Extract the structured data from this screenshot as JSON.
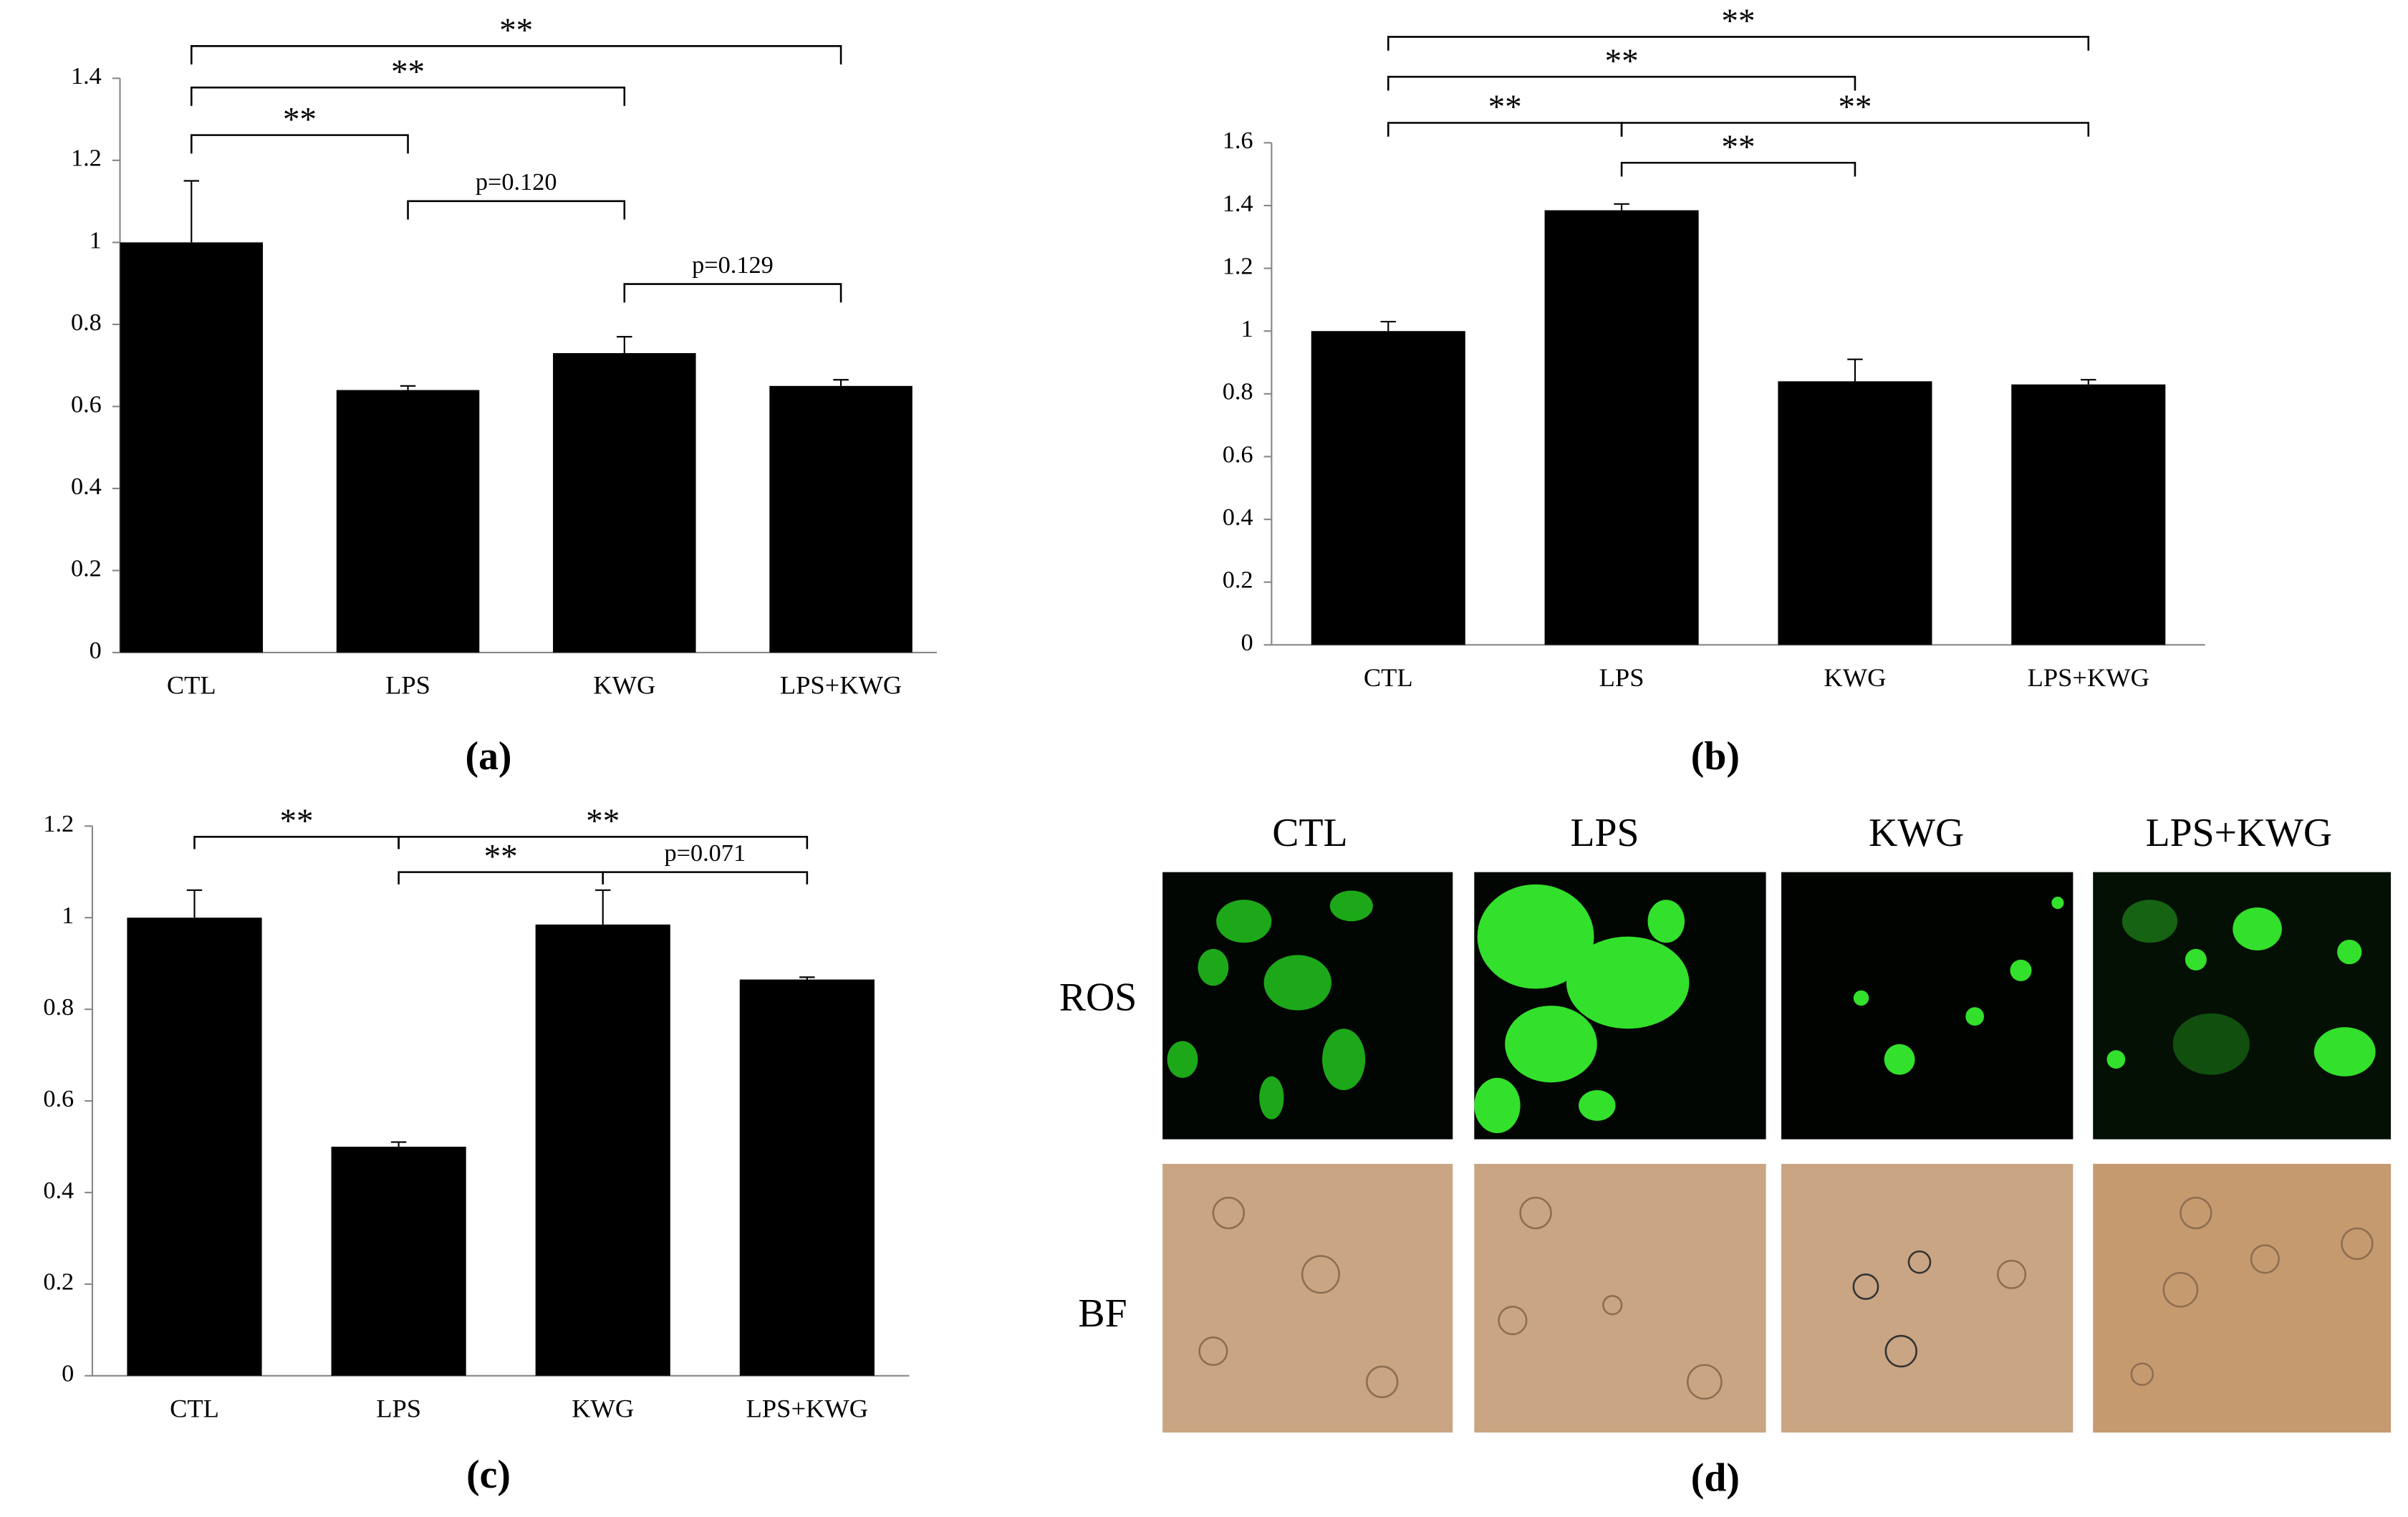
{
  "chart_data": [
    {
      "type": "bar",
      "label": "(a)",
      "categories": [
        "CTL",
        "LPS",
        "KWG",
        "LPS+KWG"
      ],
      "values": [
        1.0,
        0.64,
        0.73,
        0.65
      ],
      "errors": [
        0.15,
        0.01,
        0.04,
        0.015
      ],
      "color": "#000000",
      "ylim": [
        0,
        1.4
      ],
      "yticks": [
        0,
        0.2,
        0.4,
        0.6,
        0.8,
        1,
        1.2,
        1.4
      ],
      "annotations": [
        {
          "from": "CTL",
          "to": "LPS",
          "text": "**"
        },
        {
          "from": "CTL",
          "to": "KWG",
          "text": "**"
        },
        {
          "from": "CTL",
          "to": "LPS+KWG",
          "text": "**"
        },
        {
          "from": "LPS",
          "to": "KWG",
          "text": "p=0.120"
        },
        {
          "from": "KWG",
          "to": "LPS+KWG",
          "text": "p=0.129"
        }
      ]
    },
    {
      "type": "bar",
      "label": "(b)",
      "categories": [
        "CTL",
        "LPS",
        "KWG",
        "LPS+KWG"
      ],
      "values": [
        1.0,
        1.385,
        0.84,
        0.83
      ],
      "errors": [
        0.03,
        0.02,
        0.07,
        0.015
      ],
      "color": "#000000",
      "ylim": [
        0,
        1.6
      ],
      "yticks": [
        0,
        0.2,
        0.4,
        0.6,
        0.8,
        1,
        1.2,
        1.4,
        1.6
      ],
      "annotations": [
        {
          "from": "CTL",
          "to": "LPS",
          "text": "**"
        },
        {
          "from": "CTL",
          "to": "KWG",
          "text": "**"
        },
        {
          "from": "CTL",
          "to": "LPS+KWG",
          "text": "**"
        },
        {
          "from": "LPS",
          "to": "LPS+KWG",
          "text": "**"
        },
        {
          "from": "LPS",
          "to": "KWG",
          "text": "**"
        }
      ]
    },
    {
      "type": "bar",
      "label": "(c)",
      "categories": [
        "CTL",
        "LPS",
        "KWG",
        "LPS+KWG"
      ],
      "values": [
        1.0,
        0.5,
        0.985,
        0.865
      ],
      "errors": [
        0.06,
        0.01,
        0.075,
        0.005
      ],
      "color": "#000000",
      "ylim": [
        0,
        1.2
      ],
      "yticks": [
        0,
        0.2,
        0.4,
        0.6,
        0.8,
        1,
        1.2
      ],
      "annotations": [
        {
          "from": "CTL",
          "to": "LPS",
          "text": "**"
        },
        {
          "from": "LPS",
          "to": "LPS+KWG",
          "text": "**"
        },
        {
          "from": "LPS",
          "to": "KWG",
          "text": "**"
        },
        {
          "from": "KWG",
          "to": "LPS+KWG",
          "text": "p=0.071"
        }
      ]
    }
  ],
  "panel_d": {
    "label": "(d)",
    "columns": [
      "CTL",
      "LPS",
      "KWG",
      "LPS+KWG"
    ],
    "rows": [
      "ROS",
      "BF"
    ]
  }
}
